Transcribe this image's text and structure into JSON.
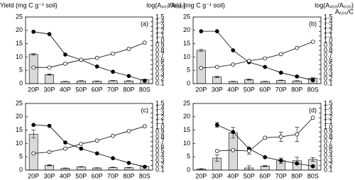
{
  "chart_data": [
    {
      "type": "combo",
      "label": "(a)",
      "y_label": "Yield (mg C g⁻¹ soil)",
      "y2_label": "log(A₄₀₀/A₆₀₀)",
      "categories": [
        "20P",
        "30P",
        "40P",
        "50P",
        "60P",
        "70P",
        "80P",
        "80S"
      ],
      "bar_color": "#d9d9d9",
      "values": [
        11,
        3.4,
        0.8,
        1.0,
        0.9,
        1.1,
        1.0,
        1.5
      ],
      "errors": [
        0.3,
        0.2,
        0.1,
        0.1,
        0.1,
        0.1,
        0.1,
        0.1
      ],
      "series": [
        {
          "color": "#000000",
          "marker_fill": "#000000",
          "axis": "y2",
          "values": [
            1.19,
            1.14,
            0.71,
            0.6,
            0.46,
            0.35,
            0.26,
            0.16
          ]
        },
        {
          "color": "#000000",
          "marker_fill": "#ffffff",
          "axis": "y2",
          "values": [
            0.44,
            0.44,
            0.52,
            0.6,
            0.64,
            0.73,
            0.83,
            0.96
          ]
        }
      ],
      "ylim": [
        0,
        25
      ],
      "yticks": [
        0,
        5,
        10,
        15,
        20,
        25
      ],
      "y2lim": [
        0.1,
        1.5
      ],
      "y2ticks": [
        0.1,
        0.2,
        0.3,
        0.4,
        0.5,
        0.6,
        0.7,
        0.8,
        0.9,
        {
          "value": 1,
          "label": "1.0"
        },
        1.1,
        1.2,
        1.3,
        1.4,
        1.5
      ]
    },
    {
      "type": "combo",
      "label": "(b)",
      "y_label": "Yield (mg C g⁻¹ soil)",
      "y2_label": "log(A₄₀₀/A₆₀₀)",
      "y2_label2": "A₆₀₀/C",
      "categories": [
        "20P",
        "30P",
        "40P",
        "50P",
        "60P",
        "70P",
        "80P",
        "80S"
      ],
      "bar_color": "#d9d9d9",
      "values": [
        12.5,
        2.5,
        0.8,
        1.5,
        0.8,
        1.2,
        1.0,
        2.0
      ],
      "errors": [
        0.4,
        0.2,
        0.1,
        0.2,
        0.1,
        0.1,
        0.1,
        0.2
      ],
      "series": [
        {
          "color": "#000000",
          "marker_fill": "#000000",
          "axis": "y2",
          "values": [
            1.2,
            1.2,
            0.8,
            0.55,
            0.45,
            0.33,
            0.25,
            0.17
          ]
        },
        {
          "color": "#000000",
          "marker_fill": "#ffffff",
          "axis": "y2",
          "values": [
            0.43,
            0.45,
            0.5,
            0.58,
            0.63,
            0.72,
            0.85,
            0.98
          ]
        }
      ],
      "ylim": [
        0,
        25
      ],
      "yticks": [
        0,
        5,
        10,
        15,
        20,
        25
      ],
      "y2lim": [
        0.1,
        1.5
      ],
      "y2ticks": [
        0.1,
        0.2,
        0.3,
        0.4,
        0.5,
        0.6,
        0.7,
        0.8,
        0.9,
        {
          "value": 1,
          "label": "1.0"
        },
        1.1,
        1.2,
        1.3,
        1.4,
        1.5
      ]
    },
    {
      "type": "combo",
      "label": "(c)",
      "categories": [
        "20P",
        "30P",
        "40P",
        "50P",
        "60P",
        "70P",
        "80P",
        "80S"
      ],
      "bar_color": "#d9d9d9",
      "values": [
        13.5,
        1.8,
        0.7,
        1.2,
        0.8,
        1.0,
        0.9,
        1.4
      ],
      "errors": [
        1.5,
        0.2,
        0.1,
        0.1,
        0.1,
        0.1,
        0.1,
        0.1
      ],
      "series": [
        {
          "color": "#000000",
          "marker_fill": "#000000",
          "axis": "y2",
          "values": [
            1.05,
            1.03,
            0.68,
            0.55,
            0.45,
            0.35,
            0.25,
            0.17
          ]
        },
        {
          "color": "#000000",
          "marker_fill": "#ffffff",
          "axis": "y2",
          "values": [
            0.45,
            0.48,
            0.55,
            0.65,
            0.72,
            0.82,
            0.92,
            1.02
          ]
        }
      ],
      "ylim": [
        0,
        25
      ],
      "yticks": [
        0,
        5,
        10,
        15,
        20,
        25
      ],
      "y2lim": [
        0.1,
        1.5
      ],
      "y2ticks": [
        0.1,
        0.2,
        0.3,
        0.4,
        0.5,
        0.6,
        0.7,
        0.8,
        0.9,
        {
          "value": 1,
          "label": "1.0"
        },
        1.1,
        1.2,
        1.3,
        1.4,
        1.5
      ]
    },
    {
      "type": "combo",
      "label": "(d)",
      "categories": [
        "20P",
        "30P",
        "40P",
        "50P",
        "60P",
        "70P",
        "80P",
        "80S"
      ],
      "bar_color": "#d9d9d9",
      "values": [
        0.4,
        4.5,
        14,
        0.8,
        1.5,
        3.5,
        3.5,
        4
      ],
      "errors": [
        0.1,
        1.2,
        2,
        0.8,
        0.2,
        1,
        1.3,
        0.7
      ],
      "series": [
        {
          "color": "#000000",
          "marker_fill": "#000000",
          "axis": "y2",
          "values": [
            null,
            1.05,
            0.9,
            0.55,
            0.37,
            0.3,
            0.24,
            0.18
          ],
          "errors": [
            null,
            0.05,
            null,
            null,
            null,
            null,
            null,
            null
          ]
        },
        {
          "color": "#000000",
          "marker_fill": "#ffffff",
          "axis": "y2",
          "values": [
            null,
            0.5,
            0.52,
            0.5,
            0.78,
            0.8,
            0.85,
            1.2
          ],
          "errors": [
            null,
            null,
            null,
            0.07,
            null,
            0.1,
            0.15,
            null
          ]
        }
      ],
      "ylim": [
        0,
        25
      ],
      "yticks": [
        0,
        5,
        10,
        15,
        20,
        25
      ],
      "y2lim": [
        0.1,
        1.5
      ],
      "y2ticks": [
        0.1,
        0.2,
        0.3,
        0.4,
        0.5,
        0.6,
        0.7,
        0.8,
        0.9,
        {
          "value": 1,
          "label": "1.0"
        },
        1.1,
        1.2,
        1.3,
        1.4,
        1.5
      ]
    }
  ]
}
